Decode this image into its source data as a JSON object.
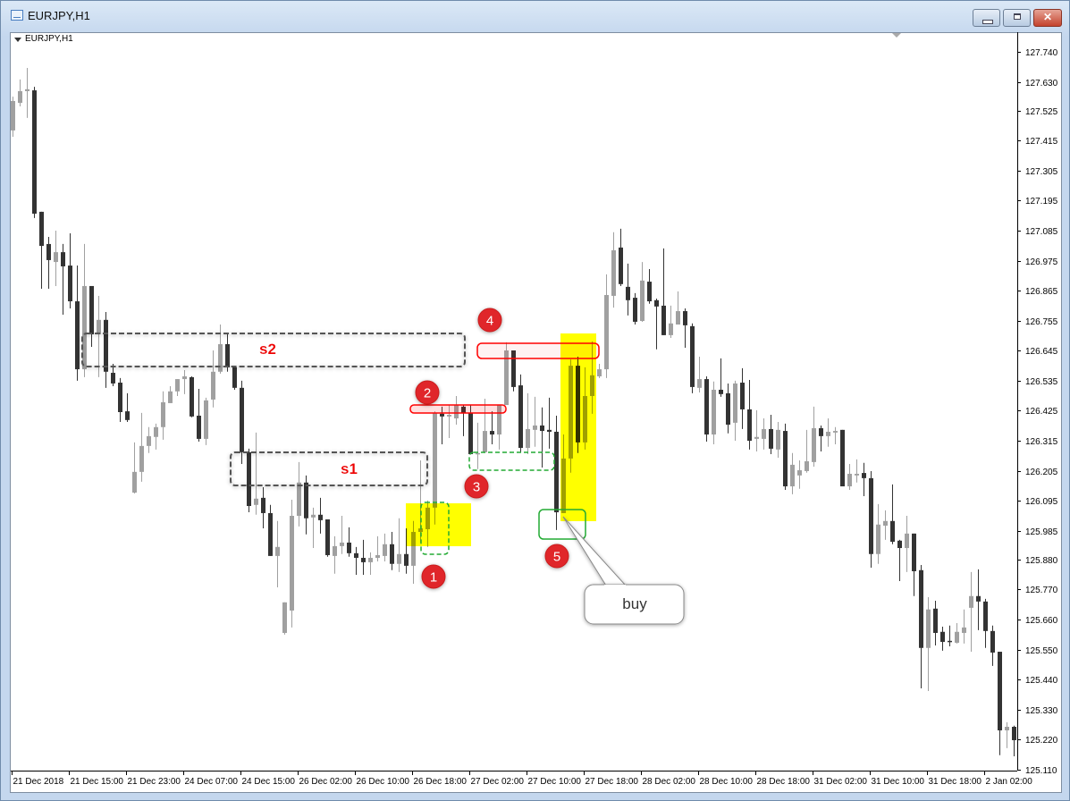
{
  "window": {
    "title": "EURJPY,H1",
    "buttons": {
      "minimize": "minimize",
      "maximize": "maximize",
      "close": "close"
    }
  },
  "chart_label": "EURJPY,H1",
  "colors": {
    "bull": "#a0a0a0",
    "bear": "#333333",
    "highlight": "#ffff00",
    "circle": "#e0262a",
    "box_red": "#ff0000",
    "box_green": "#22aa33",
    "zone_gray": "#555555"
  },
  "annotations": {
    "s1": "s1",
    "s2": "s2",
    "markers": [
      "1",
      "2",
      "3",
      "4",
      "5"
    ],
    "callout": "buy"
  },
  "chart_data": {
    "type": "candlestick",
    "symbol": "EURJPY",
    "timeframe": "H1",
    "grid": false,
    "ylim": [
      125.11,
      127.8
    ],
    "y_ticks": [
      "127.740",
      "127.630",
      "127.525",
      "127.415",
      "127.305",
      "127.195",
      "127.085",
      "126.975",
      "126.865",
      "126.755",
      "126.645",
      "126.535",
      "126.425",
      "126.315",
      "126.205",
      "126.095",
      "125.985",
      "125.880",
      "125.770",
      "125.660",
      "125.550",
      "125.440",
      "125.330",
      "125.220",
      "125.110"
    ],
    "x_ticks": [
      "21 Dec 2018",
      "21 Dec 15:00",
      "21 Dec 23:00",
      "24 Dec 07:00",
      "24 Dec 15:00",
      "26 Dec 02:00",
      "26 Dec 10:00",
      "26 Dec 18:00",
      "27 Dec 02:00",
      "27 Dec 10:00",
      "27 Dec 18:00",
      "28 Dec 02:00",
      "28 Dec 10:00",
      "28 Dec 18:00",
      "31 Dec 02:00",
      "31 Dec 10:00",
      "31 Dec 18:00",
      "2 Jan 02:00"
    ],
    "ohlc_fields": [
      "open",
      "high",
      "low",
      "close"
    ],
    "candles": [
      [
        127.452,
        127.576,
        127.429,
        127.56
      ],
      [
        127.553,
        127.639,
        127.54,
        127.596
      ],
      [
        127.596,
        127.681,
        127.498,
        127.603
      ],
      [
        127.599,
        127.612,
        127.131,
        127.147
      ],
      [
        127.154,
        127.154,
        126.872,
        127.029
      ],
      [
        127.036,
        127.062,
        126.872,
        126.977
      ],
      [
        126.97,
        127.085,
        126.882,
        127.006
      ],
      [
        127.006,
        127.036,
        126.777,
        126.954
      ],
      [
        126.957,
        127.075,
        126.8,
        126.826
      ],
      [
        126.826,
        126.957,
        126.535,
        126.577
      ],
      [
        126.577,
        127.036,
        126.548,
        126.882
      ],
      [
        126.882,
        126.882,
        126.659,
        126.705
      ],
      [
        126.705,
        126.846,
        126.548,
        126.758
      ],
      [
        126.758,
        126.787,
        126.509,
        126.568
      ],
      [
        126.564,
        126.597,
        126.515,
        126.525
      ],
      [
        126.528,
        126.545,
        126.384,
        126.42
      ],
      [
        126.423,
        126.489,
        126.384,
        126.391
      ],
      [
        126.125,
        126.309,
        126.122,
        126.201
      ],
      [
        126.201,
        126.417,
        126.165,
        126.296
      ],
      [
        126.296,
        126.365,
        126.27,
        126.332
      ],
      [
        126.329,
        126.378,
        126.283,
        126.365
      ],
      [
        126.365,
        126.496,
        126.319,
        126.456
      ],
      [
        126.453,
        126.515,
        126.453,
        126.496
      ],
      [
        126.496,
        126.541,
        126.479,
        126.541
      ],
      [
        126.541,
        126.574,
        126.486,
        126.551
      ],
      [
        126.548,
        126.551,
        126.401,
        126.404
      ],
      [
        126.407,
        126.505,
        126.312,
        126.322
      ],
      [
        126.322,
        126.473,
        126.299,
        126.463
      ],
      [
        126.466,
        126.646,
        126.437,
        126.568
      ],
      [
        126.568,
        126.741,
        126.561,
        126.669
      ],
      [
        126.669,
        126.705,
        126.568,
        126.584
      ],
      [
        126.584,
        126.59,
        126.502,
        126.509
      ],
      [
        126.509,
        126.535,
        126.23,
        126.273
      ],
      [
        126.273,
        126.286,
        126.053,
        126.076
      ],
      [
        126.08,
        126.345,
        126.044,
        126.103
      ],
      [
        126.106,
        126.145,
        125.994,
        126.05
      ],
      [
        126.05,
        126.08,
        125.893,
        125.893
      ],
      [
        125.893,
        126.021,
        125.778,
        125.926
      ],
      [
        125.611,
        125.723,
        125.605,
        125.723
      ],
      [
        125.693,
        126.099,
        125.631,
        126.04
      ],
      [
        126.04,
        126.237,
        126.001,
        126.162
      ],
      [
        126.162,
        126.188,
        125.972,
        126.031
      ],
      [
        126.034,
        126.07,
        125.922,
        126.044
      ],
      [
        126.044,
        126.106,
        125.975,
        126.024
      ],
      [
        126.027,
        126.027,
        125.89,
        125.896
      ],
      [
        125.893,
        125.965,
        125.828,
        125.929
      ],
      [
        125.929,
        126.04,
        125.9,
        125.942
      ],
      [
        125.942,
        125.998,
        125.89,
        125.903
      ],
      [
        125.903,
        125.926,
        125.824,
        125.886
      ],
      [
        125.886,
        125.952,
        125.824,
        125.87
      ],
      [
        125.87,
        125.906,
        125.824,
        125.886
      ],
      [
        125.886,
        125.965,
        125.873,
        125.896
      ],
      [
        125.893,
        125.975,
        125.873,
        125.936
      ],
      [
        125.936,
        125.981,
        125.841,
        125.864
      ],
      [
        125.864,
        126.031,
        125.834,
        125.9
      ],
      [
        125.9,
        125.994,
        125.828,
        125.857
      ],
      [
        125.857,
        126.021,
        125.791,
        125.981
      ],
      [
        125.981,
        126.243,
        125.942,
        125.994
      ],
      [
        125.991,
        126.096,
        125.926,
        126.07
      ],
      [
        126.07,
        126.423,
        126.008,
        126.417
      ],
      [
        126.414,
        126.44,
        126.302,
        126.404
      ],
      [
        126.404,
        126.446,
        126.325,
        126.41
      ],
      [
        126.397,
        126.479,
        126.374,
        126.446
      ],
      [
        126.44,
        126.446,
        126.332,
        126.417
      ],
      [
        126.417,
        126.446,
        126.266,
        126.266
      ],
      [
        126.266,
        126.381,
        126.211,
        126.27
      ],
      [
        126.273,
        126.469,
        126.27,
        126.351
      ],
      [
        126.351,
        126.423,
        126.302,
        126.338
      ],
      [
        126.338,
        126.446,
        126.283,
        126.446
      ],
      [
        126.446,
        126.676,
        126.446,
        126.646
      ],
      [
        126.646,
        126.646,
        126.496,
        126.512
      ],
      [
        126.518,
        126.558,
        126.273,
        126.289
      ],
      [
        126.289,
        126.489,
        126.266,
        126.358
      ],
      [
        126.355,
        126.476,
        126.293,
        126.371
      ],
      [
        126.371,
        126.437,
        126.217,
        126.351
      ],
      [
        126.355,
        126.473,
        126.286,
        126.348
      ],
      [
        126.348,
        126.407,
        125.988,
        126.053
      ],
      [
        126.05,
        126.338,
        126.05,
        126.25
      ],
      [
        126.25,
        126.613,
        126.198,
        126.59
      ],
      [
        126.59,
        126.623,
        126.27,
        126.309
      ],
      [
        126.309,
        126.584,
        126.283,
        126.479
      ],
      [
        126.479,
        126.679,
        126.414,
        126.555
      ],
      [
        126.551,
        126.597,
        126.545,
        126.577
      ],
      [
        126.577,
        126.925,
        126.545,
        126.849
      ],
      [
        126.846,
        127.079,
        126.803,
        127.013
      ],
      [
        127.023,
        127.092,
        126.882,
        126.889
      ],
      [
        126.879,
        126.964,
        126.774,
        126.83
      ],
      [
        126.839,
        126.856,
        126.741,
        126.751
      ],
      [
        126.754,
        126.97,
        126.751,
        126.902
      ],
      [
        126.898,
        126.944,
        126.817,
        126.826
      ],
      [
        126.83,
        126.836,
        126.65,
        126.807
      ],
      [
        126.81,
        127.02,
        126.702,
        126.702
      ],
      [
        126.702,
        126.81,
        126.692,
        126.745
      ],
      [
        126.741,
        126.862,
        126.741,
        126.79
      ],
      [
        126.79,
        126.8,
        126.656,
        126.738
      ],
      [
        126.735,
        126.745,
        126.489,
        126.512
      ],
      [
        126.509,
        126.623,
        126.492,
        126.541
      ],
      [
        126.541,
        126.551,
        126.312,
        126.338
      ],
      [
        126.338,
        126.532,
        126.302,
        126.502
      ],
      [
        126.502,
        126.617,
        126.476,
        126.486
      ],
      [
        126.489,
        126.525,
        126.342,
        126.374
      ],
      [
        126.381,
        126.535,
        126.315,
        126.525
      ],
      [
        126.528,
        126.581,
        126.358,
        126.43
      ],
      [
        126.43,
        126.538,
        126.283,
        126.315
      ],
      [
        126.322,
        126.427,
        126.276,
        126.329
      ],
      [
        126.322,
        126.397,
        126.283,
        126.358
      ],
      [
        126.358,
        126.41,
        126.266,
        126.286
      ],
      [
        126.283,
        126.384,
        126.253,
        126.355
      ],
      [
        126.351,
        126.378,
        126.135,
        126.148
      ],
      [
        126.148,
        126.27,
        126.119,
        126.227
      ],
      [
        126.188,
        126.243,
        126.139,
        126.207
      ],
      [
        126.204,
        126.355,
        126.198,
        126.24
      ],
      [
        126.237,
        126.44,
        126.22,
        126.361
      ],
      [
        126.361,
        126.371,
        126.276,
        126.332
      ],
      [
        126.332,
        126.397,
        126.293,
        126.348
      ],
      [
        126.345,
        126.365,
        126.302,
        126.351
      ],
      [
        126.355,
        126.355,
        126.148,
        126.148
      ],
      [
        126.148,
        126.23,
        126.135,
        126.194
      ],
      [
        126.188,
        126.247,
        126.162,
        126.194
      ],
      [
        126.197,
        126.234,
        126.112,
        126.178
      ],
      [
        126.178,
        126.204,
        125.85,
        125.9
      ],
      [
        125.9,
        126.083,
        125.864,
        126.008
      ],
      [
        126.004,
        126.06,
        125.952,
        126.021
      ],
      [
        126.021,
        126.155,
        125.936,
        125.945
      ],
      [
        125.949,
        125.952,
        125.801,
        125.922
      ],
      [
        125.922,
        126.04,
        125.834,
        125.975
      ],
      [
        125.975,
        125.975,
        125.746,
        125.837
      ],
      [
        125.841,
        125.86,
        125.408,
        125.556
      ],
      [
        125.556,
        125.742,
        125.398,
        125.697
      ],
      [
        125.7,
        125.729,
        125.565,
        125.611
      ],
      [
        125.615,
        125.634,
        125.546,
        125.578
      ],
      [
        125.582,
        125.638,
        125.562,
        125.578
      ],
      [
        125.575,
        125.647,
        125.572,
        125.615
      ],
      [
        125.611,
        125.697,
        125.572,
        125.631
      ],
      [
        125.703,
        125.834,
        125.542,
        125.746
      ],
      [
        125.746,
        125.844,
        125.621,
        125.726
      ],
      [
        125.726,
        125.736,
        125.556,
        125.618
      ],
      [
        125.618,
        125.638,
        125.49,
        125.539
      ],
      [
        125.542,
        125.542,
        125.163,
        125.254
      ],
      [
        125.254,
        125.284,
        125.189,
        125.267
      ],
      [
        125.267,
        125.271,
        125.159,
        125.218
      ]
    ]
  }
}
